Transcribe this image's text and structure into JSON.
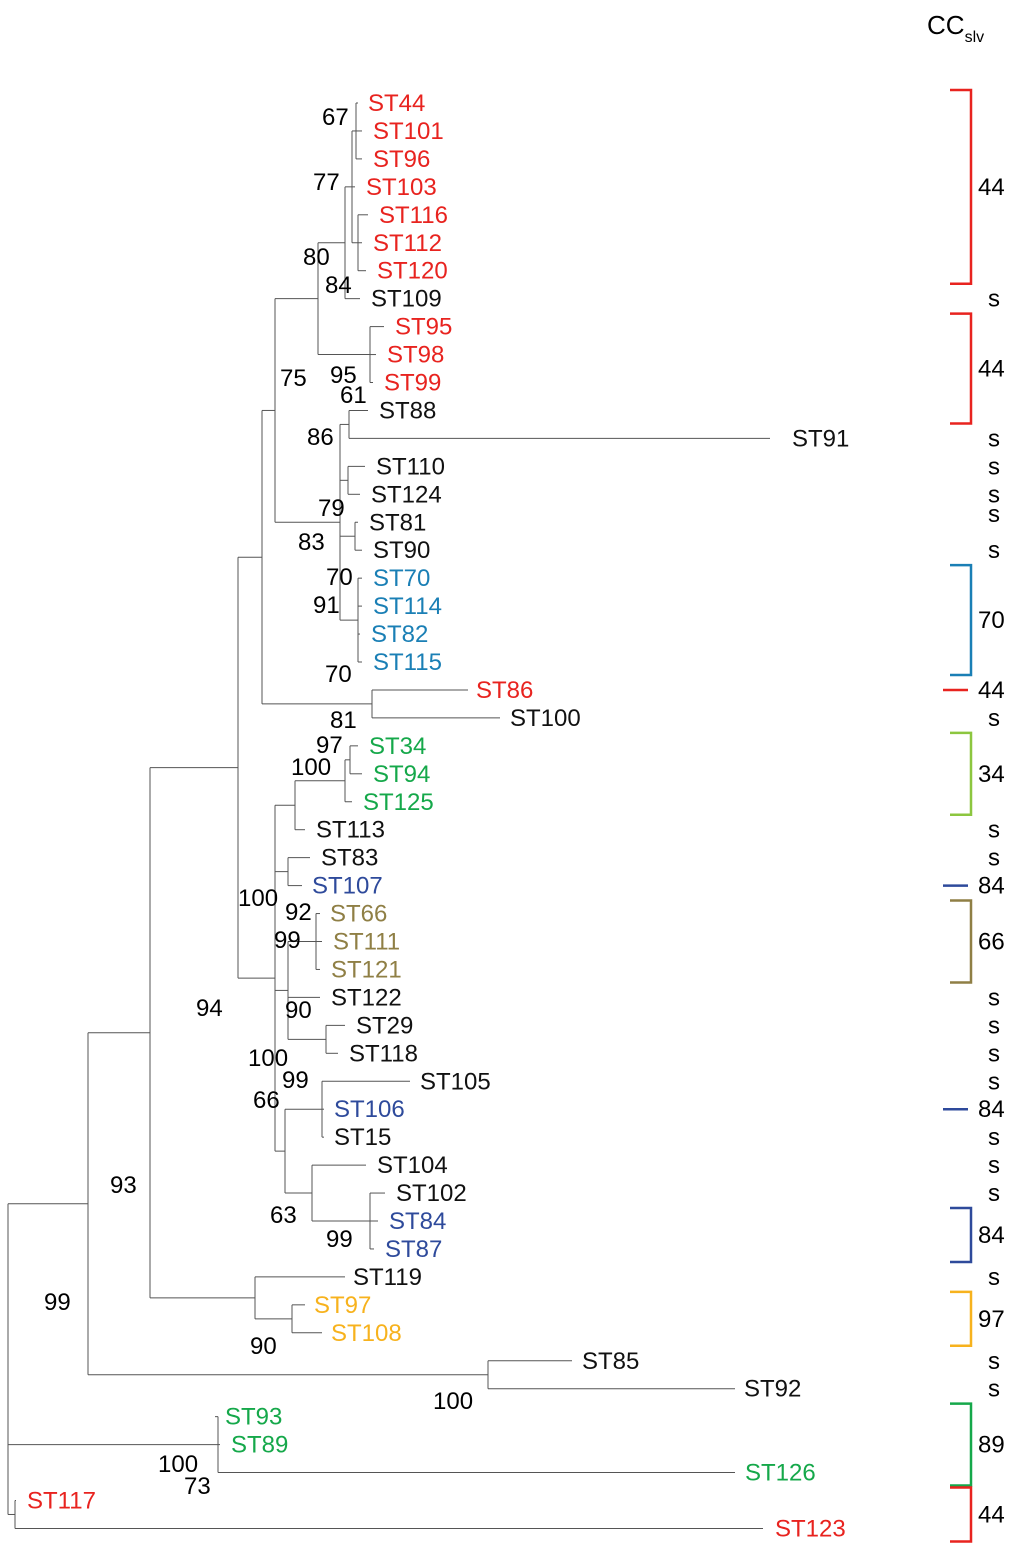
{
  "header": {
    "main": "CC",
    "sub": "slv"
  },
  "colors": {
    "red": "#e8231f",
    "black": "#111111",
    "cyan": "#1a7fb5",
    "green": "#15a84a",
    "lightgreen": "#8cc63f",
    "navy": "#2e4a9b",
    "olive": "#8f7f45",
    "orange": "#f7b21d"
  },
  "taxa": [
    {
      "id": "ST44",
      "label": "ST44",
      "color": "red"
    },
    {
      "id": "ST101",
      "label": "ST101",
      "color": "red"
    },
    {
      "id": "ST96",
      "label": "ST96",
      "color": "red"
    },
    {
      "id": "ST103",
      "label": "ST103",
      "color": "red"
    },
    {
      "id": "ST116",
      "label": "ST116",
      "color": "red"
    },
    {
      "id": "ST112",
      "label": "ST112",
      "color": "red"
    },
    {
      "id": "ST120",
      "label": "ST120",
      "color": "red"
    },
    {
      "id": "ST109",
      "label": "ST109",
      "color": "black"
    },
    {
      "id": "ST95",
      "label": "ST95",
      "color": "red"
    },
    {
      "id": "ST98",
      "label": "ST98",
      "color": "red"
    },
    {
      "id": "ST99",
      "label": "ST99",
      "color": "red"
    },
    {
      "id": "ST88",
      "label": "ST88",
      "color": "black"
    },
    {
      "id": "ST91",
      "label": "ST91",
      "color": "black"
    },
    {
      "id": "ST110",
      "label": "ST110",
      "color": "black"
    },
    {
      "id": "ST124",
      "label": "ST124",
      "color": "black"
    },
    {
      "id": "ST81",
      "label": "ST81",
      "color": "black"
    },
    {
      "id": "ST90",
      "label": "ST90",
      "color": "black"
    },
    {
      "id": "ST70",
      "label": "ST70",
      "color": "cyan"
    },
    {
      "id": "ST114",
      "label": "ST114",
      "color": "cyan"
    },
    {
      "id": "ST82",
      "label": "ST82",
      "color": "cyan"
    },
    {
      "id": "ST115",
      "label": "ST115",
      "color": "cyan"
    },
    {
      "id": "ST86",
      "label": "ST86",
      "color": "red"
    },
    {
      "id": "ST100",
      "label": "ST100",
      "color": "black"
    },
    {
      "id": "ST34",
      "label": "ST34",
      "color": "green"
    },
    {
      "id": "ST94",
      "label": "ST94",
      "color": "green"
    },
    {
      "id": "ST125",
      "label": "ST125",
      "color": "green"
    },
    {
      "id": "ST113",
      "label": "ST113",
      "color": "black"
    },
    {
      "id": "ST83",
      "label": "ST83",
      "color": "black"
    },
    {
      "id": "ST107",
      "label": "ST107",
      "color": "navy"
    },
    {
      "id": "ST66",
      "label": "ST66",
      "color": "olive"
    },
    {
      "id": "ST111",
      "label": "ST111",
      "color": "olive"
    },
    {
      "id": "ST121",
      "label": "ST121",
      "color": "olive"
    },
    {
      "id": "ST122",
      "label": "ST122",
      "color": "black"
    },
    {
      "id": "ST29",
      "label": "ST29",
      "color": "black"
    },
    {
      "id": "ST118",
      "label": "ST118",
      "color": "black"
    },
    {
      "id": "ST105",
      "label": "ST105",
      "color": "black"
    },
    {
      "id": "ST106",
      "label": "ST106",
      "color": "navy"
    },
    {
      "id": "ST15",
      "label": "ST15",
      "color": "black"
    },
    {
      "id": "ST104",
      "label": "ST104",
      "color": "black"
    },
    {
      "id": "ST102",
      "label": "ST102",
      "color": "black"
    },
    {
      "id": "ST84",
      "label": "ST84",
      "color": "navy"
    },
    {
      "id": "ST87",
      "label": "ST87",
      "color": "navy"
    },
    {
      "id": "ST119",
      "label": "ST119",
      "color": "black"
    },
    {
      "id": "ST97",
      "label": "ST97",
      "color": "orange"
    },
    {
      "id": "ST108",
      "label": "ST108",
      "color": "orange"
    },
    {
      "id": "ST85",
      "label": "ST85",
      "color": "black"
    },
    {
      "id": "ST92",
      "label": "ST92",
      "color": "black"
    },
    {
      "id": "ST93",
      "label": "ST93",
      "color": "green"
    },
    {
      "id": "ST89",
      "label": "ST89",
      "color": "green"
    },
    {
      "id": "ST126",
      "label": "ST126",
      "color": "green"
    },
    {
      "id": "ST117",
      "label": "ST117",
      "color": "red"
    },
    {
      "id": "ST123",
      "label": "ST123",
      "color": "red"
    }
  ],
  "bootstrap": [
    "67",
    "77",
    "80",
    "84",
    "75",
    "95",
    "61",
    "86",
    "79",
    "83",
    "70",
    "91",
    "70",
    "81",
    "97",
    "100",
    "100",
    "92",
    "99",
    "90",
    "100",
    "99",
    "66",
    "63",
    "99",
    "94",
    "90",
    "93",
    "100",
    "99",
    "100",
    "73"
  ],
  "cc_groups": [
    {
      "label": "44",
      "color": "red",
      "kind": "bracket"
    },
    {
      "label": "s",
      "kind": "text"
    },
    {
      "label": "44",
      "color": "red",
      "kind": "bracket"
    },
    {
      "label": "s",
      "kind": "text"
    },
    {
      "label": "s",
      "kind": "text"
    },
    {
      "label": "s",
      "kind": "text"
    },
    {
      "label": "s",
      "kind": "text"
    },
    {
      "label": "s",
      "kind": "text"
    },
    {
      "label": "70",
      "color": "cyan",
      "kind": "bracket"
    },
    {
      "label": "44",
      "color": "red",
      "kind": "dash"
    },
    {
      "label": "s",
      "kind": "text"
    },
    {
      "label": "34",
      "color": "lightgreen",
      "kind": "bracket"
    },
    {
      "label": "s",
      "kind": "text"
    },
    {
      "label": "s",
      "kind": "text"
    },
    {
      "label": "84",
      "color": "navy",
      "kind": "dash"
    },
    {
      "label": "66",
      "color": "olive",
      "kind": "bracket"
    },
    {
      "label": "s",
      "kind": "text"
    },
    {
      "label": "s",
      "kind": "text"
    },
    {
      "label": "s",
      "kind": "text"
    },
    {
      "label": "s",
      "kind": "text"
    },
    {
      "label": "84",
      "color": "navy",
      "kind": "dash"
    },
    {
      "label": "s",
      "kind": "text"
    },
    {
      "label": "s",
      "kind": "text"
    },
    {
      "label": "s",
      "kind": "text"
    },
    {
      "label": "84",
      "color": "navy",
      "kind": "bracket"
    },
    {
      "label": "s",
      "kind": "text"
    },
    {
      "label": "97",
      "color": "orange",
      "kind": "bracket"
    },
    {
      "label": "s",
      "kind": "text"
    },
    {
      "label": "s",
      "kind": "text"
    },
    {
      "label": "89",
      "color": "green",
      "kind": "bracket"
    },
    {
      "label": "44",
      "color": "red",
      "kind": "bracket"
    }
  ]
}
